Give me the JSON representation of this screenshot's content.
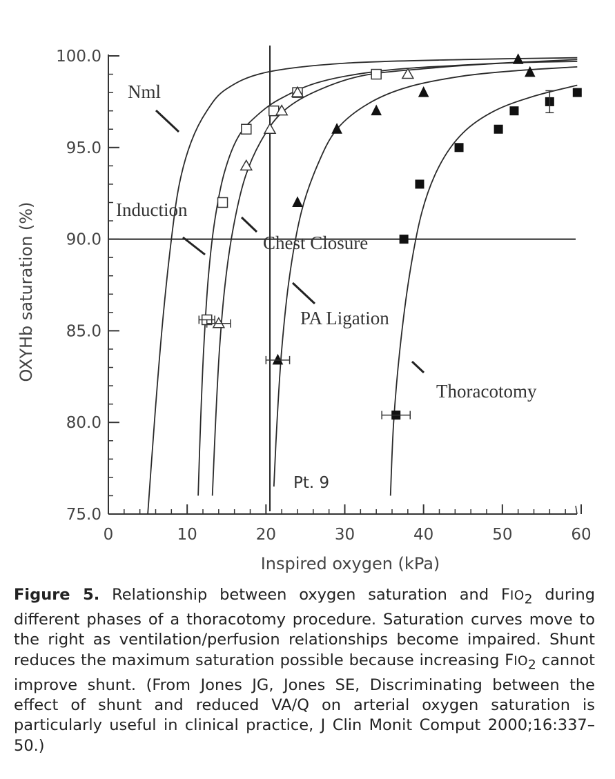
{
  "chart_data": {
    "type": "line",
    "xlabel": "Inspired oxygen (kPa)",
    "ylabel": "OXYHb saturation (%)",
    "xlim": [
      0,
      60
    ],
    "ylim": [
      75,
      100
    ],
    "x_ticks": [
      "0",
      "10",
      "20",
      "30",
      "40",
      "50",
      "60"
    ],
    "y_ticks": [
      "75.0",
      "80.0",
      "85.0",
      "90.0",
      "95.0",
      "100.0"
    ],
    "reference_lines": {
      "horizontal_y": 90,
      "vertical_x": 20.5
    },
    "annotations": {
      "nml": "Nml",
      "induction": "Induction",
      "chest_closure": "Chest Closure",
      "pa_ligation": "PA Ligation",
      "thoracotomy": "Thoracotomy",
      "patient": "Pt. 9"
    },
    "series": [
      {
        "label_key": "nml",
        "marker": "none",
        "curve": [
          [
            5.0,
            75
          ],
          [
            5.5,
            78
          ],
          [
            6.2,
            82
          ],
          [
            7.0,
            86
          ],
          [
            8.0,
            90
          ],
          [
            9.0,
            93
          ],
          [
            10.5,
            95.3
          ],
          [
            12.5,
            97
          ],
          [
            15,
            98.2
          ],
          [
            20,
            99.1
          ],
          [
            30,
            99.6
          ],
          [
            45,
            99.8
          ],
          [
            59.5,
            99.9
          ]
        ],
        "points": []
      },
      {
        "label_key": "induction",
        "marker": "open-square",
        "curve": [
          [
            11.4,
            76
          ],
          [
            11.7,
            80
          ],
          [
            12.1,
            84
          ],
          [
            12.7,
            88
          ],
          [
            13.5,
            91
          ],
          [
            14.7,
            93.6
          ],
          [
            16.5,
            95.6
          ],
          [
            19,
            96.8
          ],
          [
            22,
            97.7
          ],
          [
            27,
            98.6
          ],
          [
            35,
            99.2
          ],
          [
            45,
            99.5
          ],
          [
            59.5,
            99.8
          ]
        ],
        "points": [
          [
            12.5,
            85.6
          ],
          [
            14.5,
            92
          ],
          [
            17.5,
            96
          ],
          [
            21,
            97
          ],
          [
            24,
            98
          ],
          [
            34,
            99
          ]
        ]
      },
      {
        "label_key": "chest_closure",
        "marker": "open-triangle",
        "curve": [
          [
            13.2,
            76
          ],
          [
            13.6,
            80
          ],
          [
            14.1,
            84
          ],
          [
            14.8,
            87.5
          ],
          [
            15.8,
            90.5
          ],
          [
            17.3,
            93.3
          ],
          [
            19.3,
            95.3
          ],
          [
            22,
            96.9
          ],
          [
            26,
            98
          ],
          [
            32,
            98.9
          ],
          [
            40,
            99.3
          ],
          [
            50,
            99.6
          ],
          [
            59.5,
            99.7
          ]
        ],
        "points": [
          [
            14.0,
            85.4
          ],
          [
            17.5,
            94
          ],
          [
            20.5,
            96
          ],
          [
            22,
            97
          ],
          [
            24,
            98
          ],
          [
            38,
            99
          ]
        ]
      },
      {
        "label_key": "pa_ligation",
        "marker": "filled-triangle",
        "curve": [
          [
            21.0,
            76.5
          ],
          [
            21.4,
            80
          ],
          [
            22.0,
            84
          ],
          [
            23.0,
            88
          ],
          [
            24.5,
            91.5
          ],
          [
            26.5,
            94
          ],
          [
            29,
            96
          ],
          [
            33,
            97.4
          ],
          [
            38,
            98.3
          ],
          [
            45,
            98.9
          ],
          [
            52,
            99.2
          ],
          [
            59.5,
            99.4
          ]
        ],
        "points": [
          [
            21.5,
            83.4
          ],
          [
            24,
            92
          ],
          [
            29,
            96
          ],
          [
            34,
            97
          ],
          [
            40,
            98
          ],
          [
            52,
            99.8
          ],
          [
            53.5,
            99.1
          ]
        ]
      },
      {
        "label_key": "thoracotomy",
        "marker": "filled-square",
        "curve": [
          [
            35.8,
            76
          ],
          [
            36.2,
            80
          ],
          [
            37,
            84
          ],
          [
            38.2,
            88
          ],
          [
            39.8,
            91.5
          ],
          [
            42,
            94
          ],
          [
            45,
            95.8
          ],
          [
            49,
            97
          ],
          [
            54,
            97.8
          ],
          [
            59.5,
            98.4
          ]
        ],
        "points": [
          [
            36.5,
            80.4
          ],
          [
            37.5,
            90
          ],
          [
            39.5,
            93
          ],
          [
            44.5,
            95
          ],
          [
            49.5,
            96
          ],
          [
            51.5,
            97
          ],
          [
            56,
            97.5
          ],
          [
            59.5,
            98
          ]
        ]
      }
    ]
  },
  "caption": {
    "label": "Figure 5.",
    "text_1": " Relationship between oxygen saturation and ",
    "fio2_f": "F",
    "fio2_io": "IO",
    "fio2_sub": "2",
    "text_2": " during different phases of a thoracotomy procedure. Saturation curves move to the right as ventilation/perfusion relationships become impaired. Shunt reduces the maximum saturation possible because increasing ",
    "text_3": " cannot improve shunt. (From Jones JG, Jones SE, Discriminating between the effect of shunt and reduced VA/Q on arterial oxygen saturation is particularly useful in clinical practice, J Clin Monit Comput 2000;16:337–50.)"
  }
}
